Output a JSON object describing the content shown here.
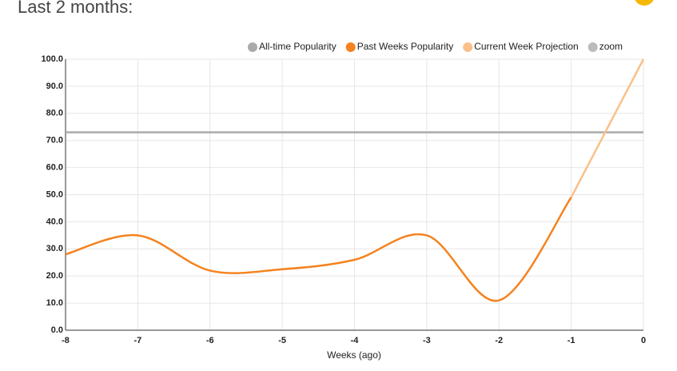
{
  "chart_data": {
    "type": "line",
    "title": "Last 2 months:",
    "x_label": "Weeks (ago)",
    "x": [
      -8,
      -7,
      -6,
      -5,
      -4,
      -3,
      -2,
      -1,
      0
    ],
    "series": [
      {
        "name": "All-time Popularity",
        "color": "#aaaaaa",
        "values": [
          73,
          73,
          73,
          73,
          73,
          73,
          73,
          73,
          73
        ]
      },
      {
        "name": "Past Weeks Popularity",
        "color": "#f5821f",
        "values": [
          28,
          35,
          22,
          22.5,
          26,
          35,
          11,
          49,
          null
        ]
      },
      {
        "name": "Current Week Projection",
        "color": "#fbc08a",
        "values": [
          null,
          null,
          null,
          null,
          null,
          null,
          null,
          49,
          100
        ]
      },
      {
        "name": "zoom",
        "color": "#bbbbbb"
      }
    ],
    "xlim": [
      -8,
      0
    ],
    "xticks": [
      -8,
      -7,
      -6,
      -5,
      -4,
      -3,
      -2,
      -1,
      0
    ],
    "ylim": [
      0,
      100
    ],
    "yticks": [
      {
        "value": 0,
        "label": "0.0"
      },
      {
        "value": 10,
        "label": "10.0"
      },
      {
        "value": 20,
        "label": "20.0"
      },
      {
        "value": 30,
        "label": "30.0"
      },
      {
        "value": 40,
        "label": "40.0"
      },
      {
        "value": 50,
        "label": "50.0"
      },
      {
        "value": 60,
        "label": "60.0"
      },
      {
        "value": 70,
        "label": "70.0"
      },
      {
        "value": 80,
        "label": "80.0"
      },
      {
        "value": 90,
        "label": "90.0"
      },
      {
        "value": 100,
        "label": "100.0"
      }
    ],
    "grid": true
  }
}
